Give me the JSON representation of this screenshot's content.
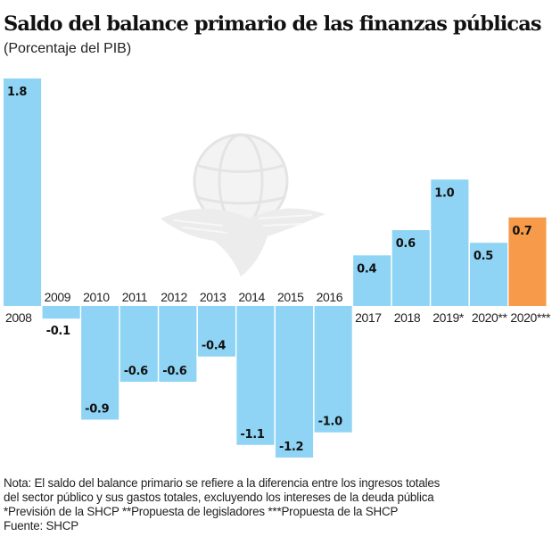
{
  "chart_data": {
    "type": "bar",
    "title": "Saldo del balance primario de las finanzas públicas",
    "subtitle": "(Porcentaje del PIB)",
    "xlabel": "",
    "ylabel": "",
    "ylim": [
      -1.2,
      1.8
    ],
    "grid": false,
    "legend": "none",
    "categories": [
      "2008",
      "2009",
      "2010",
      "2011",
      "2012",
      "2013",
      "2014",
      "2015",
      "2016",
      "2017",
      "2018",
      "2019*",
      "2020**",
      "2020***"
    ],
    "values": [
      1.8,
      -0.1,
      -0.9,
      -0.6,
      -0.6,
      -0.4,
      -1.1,
      -1.2,
      -1.0,
      0.4,
      0.6,
      1.0,
      0.5,
      0.7
    ],
    "data_labels": [
      "1.8",
      "-0.1",
      "-0.9",
      "-0.6",
      "-0.6",
      "-0.4",
      "-1.1",
      "-1.2",
      "-1.0",
      "0.4",
      "0.6",
      "1.0",
      "0.5",
      "0.7"
    ],
    "colors": [
      "#8fd4f5",
      "#8fd4f5",
      "#8fd4f5",
      "#8fd4f5",
      "#8fd4f5",
      "#8fd4f5",
      "#8fd4f5",
      "#8fd4f5",
      "#8fd4f5",
      "#8fd4f5",
      "#8fd4f5",
      "#8fd4f5",
      "#8fd4f5",
      "#f79a49"
    ]
  },
  "header": {
    "title": "Saldo del balance primario de las finanzas públicas",
    "subtitle": "(Porcentaje del PIB)"
  },
  "footer": {
    "notes": [
      "Nota: El saldo del balance primario se refiere a la diferencia entre los ingresos totales",
      "del sector público y sus gastos totales, excluyendo los intereses de la deuda pública",
      "*Previsión de la SHCP **Propuesta de legisladores ***Propuesta de la SHCP",
      "Fuente: SHCP"
    ]
  },
  "watermark": {
    "icon": "eagle-globe-logo-icon"
  }
}
